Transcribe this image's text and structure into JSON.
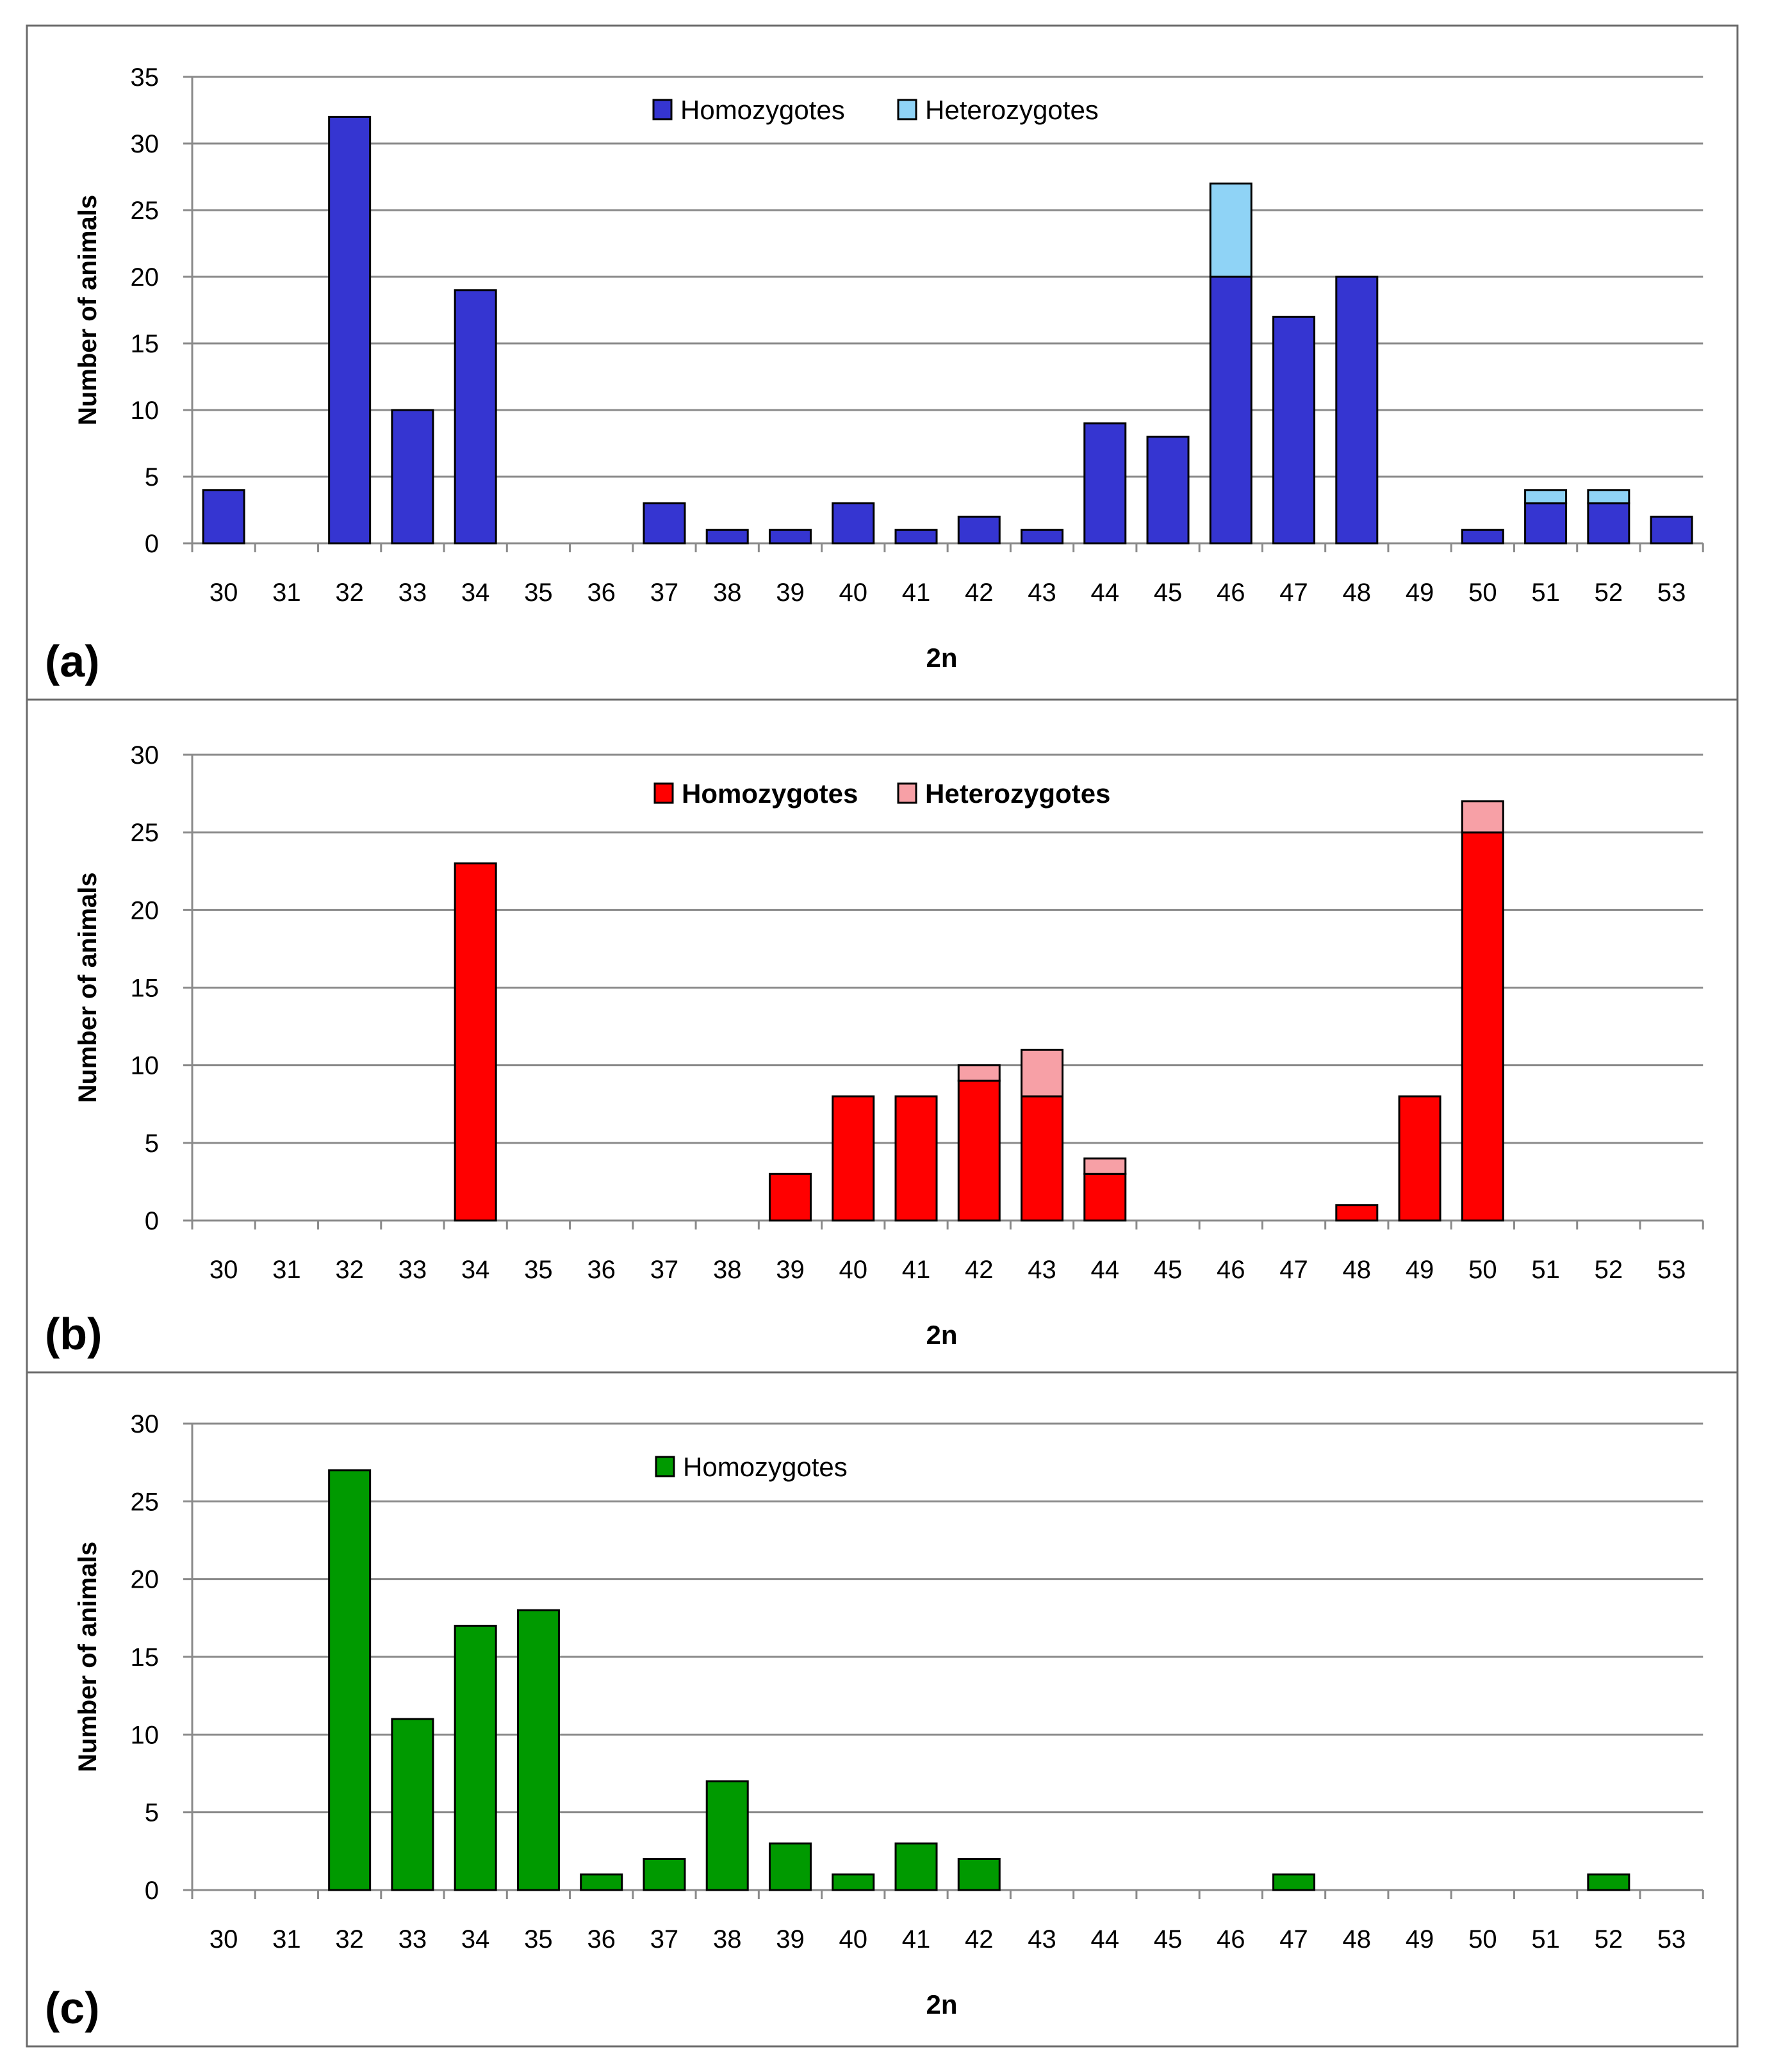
{
  "chart_data": [
    {
      "type": "bar",
      "stacked": true,
      "panel_label": "(a)",
      "title": "",
      "xlabel": "2n",
      "ylabel": "Number of animals",
      "ylim": [
        0,
        35
      ],
      "y_ticks": [
        0,
        5,
        10,
        15,
        20,
        25,
        30,
        35
      ],
      "grid": true,
      "legend_position": "top-center",
      "categories": [
        "30",
        "31",
        "32",
        "33",
        "34",
        "35",
        "36",
        "37",
        "38",
        "39",
        "40",
        "41",
        "42",
        "43",
        "44",
        "45",
        "46",
        "47",
        "48",
        "49",
        "50",
        "51",
        "52",
        "53"
      ],
      "series": [
        {
          "name": "Homozygotes",
          "color": "#3535d1",
          "values": [
            4,
            0,
            32,
            10,
            19,
            0,
            0,
            3,
            1,
            1,
            3,
            1,
            2,
            1,
            9,
            8,
            20,
            17,
            20,
            0,
            1,
            3,
            3,
            2
          ]
        },
        {
          "name": "Heterozygotes",
          "color": "#8fd3f6",
          "values": [
            0,
            0,
            0,
            0,
            0,
            0,
            0,
            0,
            0,
            0,
            0,
            0,
            0,
            0,
            0,
            0,
            7,
            0,
            0,
            0,
            0,
            1,
            1,
            0
          ]
        }
      ]
    },
    {
      "type": "bar",
      "stacked": true,
      "panel_label": "(b)",
      "title": "",
      "xlabel": "2n",
      "ylabel": "Number of animals",
      "ylim": [
        0,
        30
      ],
      "y_ticks": [
        0,
        5,
        10,
        15,
        20,
        25,
        30
      ],
      "grid": true,
      "legend_position": "top-center",
      "categories": [
        "30",
        "31",
        "32",
        "33",
        "34",
        "35",
        "36",
        "37",
        "38",
        "39",
        "40",
        "41",
        "42",
        "43",
        "44",
        "45",
        "46",
        "47",
        "48",
        "49",
        "50",
        "51",
        "52",
        "53"
      ],
      "series": [
        {
          "name": "Homozygotes",
          "color": "#ff0000",
          "values": [
            0,
            0,
            0,
            0,
            23,
            0,
            0,
            0,
            0,
            3,
            8,
            8,
            9,
            8,
            3,
            0,
            0,
            0,
            1,
            8,
            25,
            0,
            0,
            0
          ]
        },
        {
          "name": "Heterozygotes",
          "color": "#f7a0a6",
          "values": [
            0,
            0,
            0,
            0,
            0,
            0,
            0,
            0,
            0,
            0,
            0,
            0,
            1,
            3,
            1,
            0,
            0,
            0,
            0,
            0,
            2,
            0,
            0,
            0
          ]
        }
      ]
    },
    {
      "type": "bar",
      "stacked": true,
      "panel_label": "(c)",
      "title": "",
      "xlabel": "2n",
      "ylabel": "Number of animals",
      "ylim": [
        0,
        30
      ],
      "y_ticks": [
        0,
        5,
        10,
        15,
        20,
        25,
        30
      ],
      "grid": true,
      "legend_position": "top-center",
      "categories": [
        "30",
        "31",
        "32",
        "33",
        "34",
        "35",
        "36",
        "37",
        "38",
        "39",
        "40",
        "41",
        "42",
        "43",
        "44",
        "45",
        "46",
        "47",
        "48",
        "49",
        "50",
        "51",
        "52",
        "53"
      ],
      "series": [
        {
          "name": "Homozygotes",
          "color": "#009a00",
          "values": [
            0,
            0,
            27,
            11,
            17,
            18,
            1,
            2,
            7,
            3,
            1,
            3,
            2,
            0,
            0,
            0,
            0,
            1,
            0,
            0,
            0,
            0,
            1,
            0
          ]
        }
      ]
    }
  ]
}
